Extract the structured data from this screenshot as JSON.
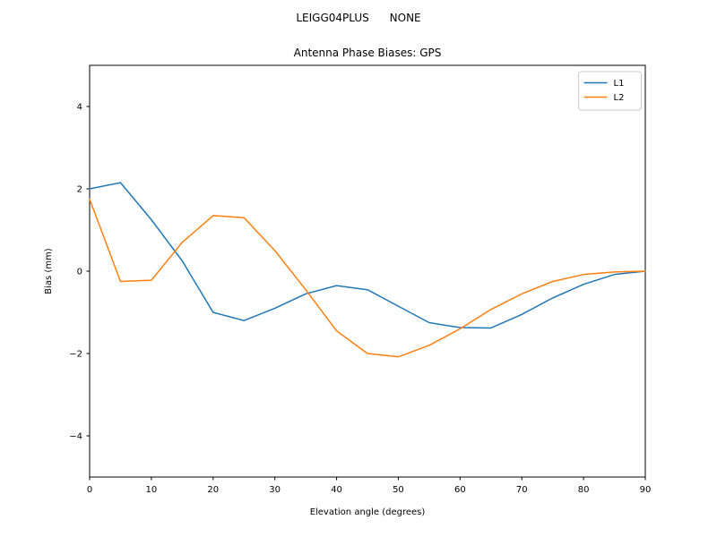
{
  "figure": {
    "suptitle": "LEIGG04PLUS      NONE",
    "background": "#ffffff"
  },
  "chart_data": {
    "type": "line",
    "title": "Antenna Phase Biases: GPS",
    "xlabel": "Elevation angle (degrees)",
    "ylabel": "Bias (mm)",
    "xlim": [
      0,
      90
    ],
    "ylim": [
      -5,
      5
    ],
    "xticks": [
      0,
      10,
      20,
      30,
      40,
      50,
      60,
      70,
      80,
      90
    ],
    "xtick_labels": [
      "0",
      "10",
      "20",
      "30",
      "40",
      "50",
      "60",
      "70",
      "80",
      "90"
    ],
    "yticks": [
      -4,
      -2,
      0,
      2,
      4
    ],
    "ytick_labels": [
      "−4",
      "−2",
      "0",
      "2",
      "4"
    ],
    "grid": false,
    "legend_position": "upper right",
    "x": [
      0,
      5,
      10,
      15,
      20,
      25,
      30,
      35,
      40,
      45,
      50,
      55,
      60,
      65,
      70,
      75,
      80,
      85,
      90
    ],
    "series": [
      {
        "name": "L1",
        "color": "#1f77b4",
        "values": [
          2.0,
          2.15,
          1.25,
          0.25,
          -1.0,
          -1.2,
          -0.9,
          -0.55,
          -0.35,
          -0.45,
          -0.85,
          -1.25,
          -1.37,
          -1.38,
          -1.05,
          -0.65,
          -0.32,
          -0.08,
          0.0
        ]
      },
      {
        "name": "L2",
        "color": "#ff7f0e",
        "values": [
          1.75,
          -0.25,
          -0.22,
          0.7,
          1.35,
          1.3,
          0.5,
          -0.45,
          -1.45,
          -2.0,
          -2.08,
          -1.8,
          -1.4,
          -0.93,
          -0.55,
          -0.25,
          -0.08,
          -0.02,
          0.0
        ]
      }
    ],
    "axis_color": "#000000",
    "legend_border_color": "#cccccc"
  }
}
